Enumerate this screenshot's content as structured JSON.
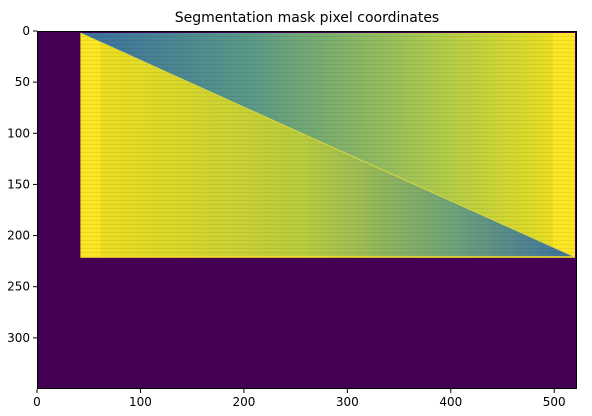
{
  "chart_data": {
    "type": "heatmap",
    "title": "Segmentation mask pixel coordinates",
    "xlabel": "",
    "ylabel": "",
    "xlim": [
      0,
      522
    ],
    "ylim": [
      350,
      0
    ],
    "y_axis_inverted": true,
    "x_ticks": [
      0,
      100,
      200,
      300,
      400,
      500
    ],
    "y_ticks": [
      0,
      50,
      100,
      150,
      200,
      250,
      300
    ],
    "x_tick_labels": [
      "0",
      "100",
      "200",
      "300",
      "400",
      "500"
    ],
    "y_tick_labels": [
      "0",
      "50",
      "100",
      "150",
      "200",
      "250",
      "300"
    ],
    "colormap": "viridis",
    "grid": false,
    "background_value_color": "#440154",
    "high_value_color": "#fde725",
    "mid_value_color": "#3b6fa0",
    "masked_region": {
      "x_range": [
        42,
        520
      ],
      "y_range": [
        2,
        221
      ]
    },
    "triangle_diagonal": {
      "from": [
        42,
        2
      ],
      "to": [
        520,
        221
      ]
    },
    "lower_left_triangle_value": "high",
    "upper_right_triangle_gradient": "mid to high (left to right)"
  }
}
